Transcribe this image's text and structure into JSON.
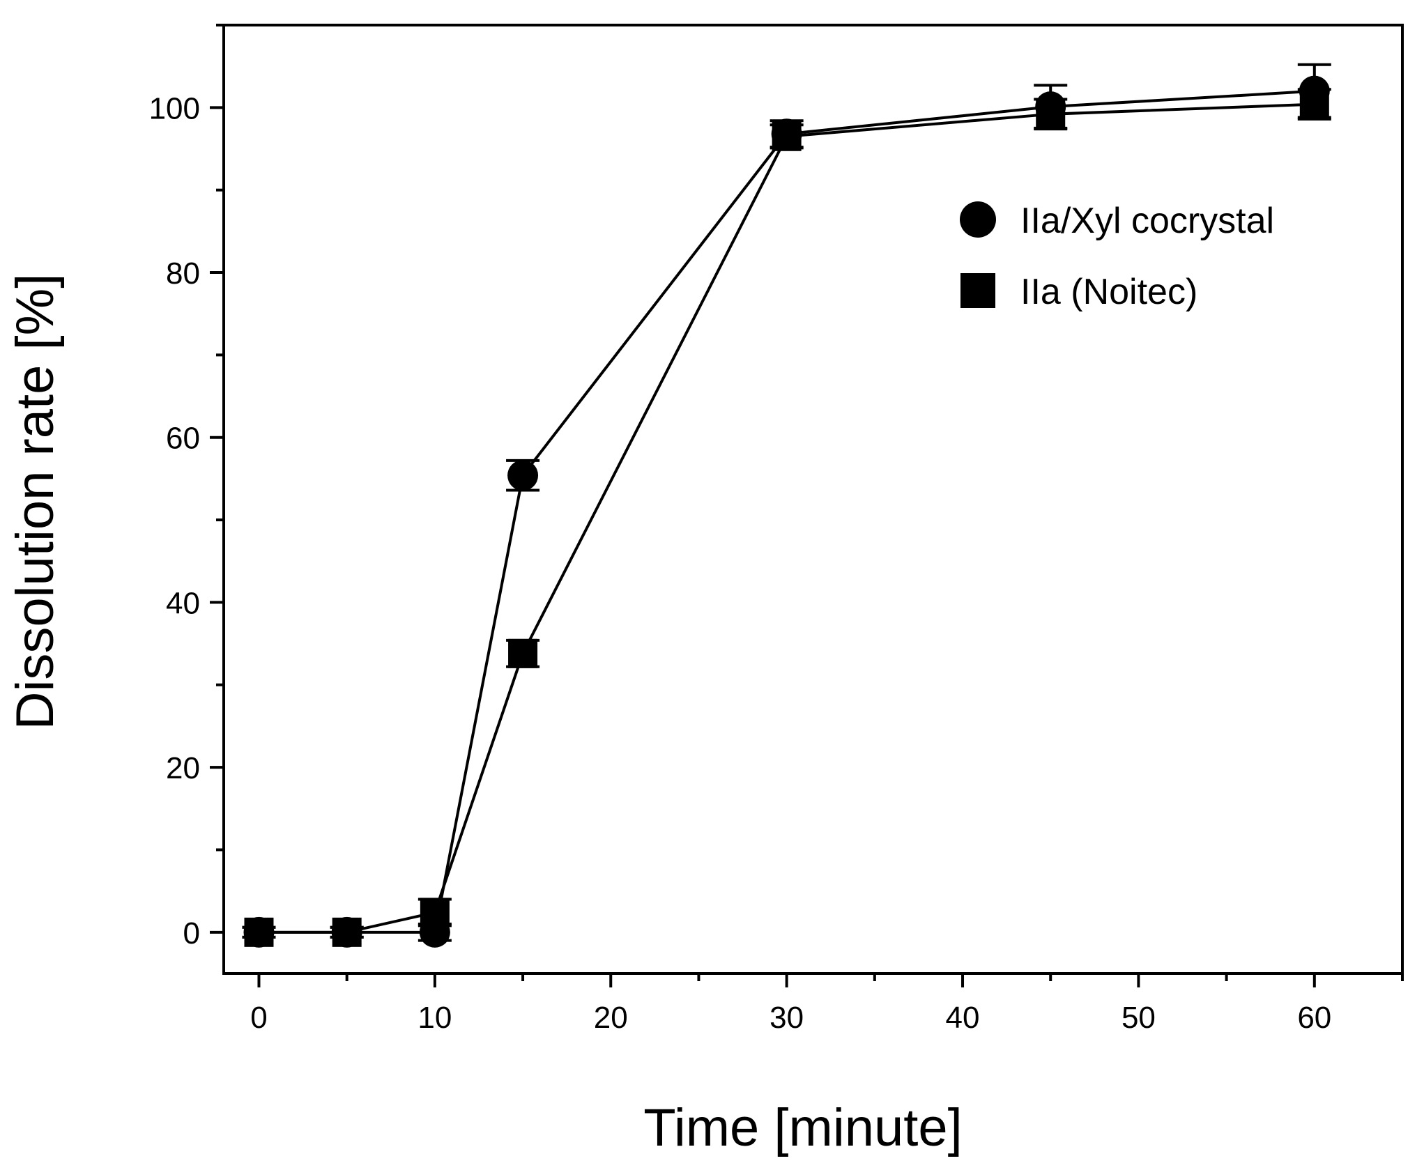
{
  "chart_data": {
    "type": "line",
    "title": "",
    "xlabel": "Time [minute]",
    "ylabel": "Dissolution rate [%]",
    "xlim": [
      -2,
      65
    ],
    "ylim": [
      -5,
      110
    ],
    "x_ticks": [
      0,
      10,
      20,
      30,
      40,
      50,
      60
    ],
    "x_tick_labels": [
      "0",
      "10",
      "20",
      "30",
      "40",
      "50",
      "60"
    ],
    "x_minor_ticks": [
      5,
      15,
      25,
      35,
      45,
      55,
      65
    ],
    "y_ticks": [
      0,
      20,
      40,
      60,
      80,
      100
    ],
    "y_tick_labels": [
      "0",
      "20",
      "40",
      "60",
      "80",
      "100"
    ],
    "y_minor_ticks": [
      10,
      30,
      50,
      70,
      90,
      110
    ],
    "grid": false,
    "legend_position": "top-right",
    "series": [
      {
        "name": "IIa/Xyl cocrystal",
        "marker": "circle",
        "color": "#000000",
        "x": [
          0,
          5,
          10,
          15,
          30,
          45,
          60
        ],
        "y": [
          0,
          0,
          0,
          55.4,
          96.8,
          100.1,
          102.0
        ],
        "error": [
          0.6,
          0.6,
          1.0,
          1.8,
          1.6,
          2.6,
          3.2
        ]
      },
      {
        "name": "IIa (Noitec)",
        "marker": "square",
        "color": "#000000",
        "x": [
          0,
          5,
          10,
          15,
          30,
          45,
          60
        ],
        "y": [
          0,
          0,
          2.4,
          33.8,
          96.5,
          99.2,
          100.4
        ],
        "error": [
          0.6,
          0.6,
          1.6,
          1.6,
          1.4,
          1.8,
          1.8
        ]
      }
    ]
  }
}
